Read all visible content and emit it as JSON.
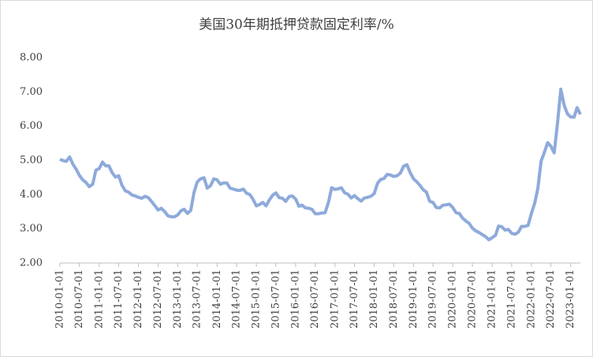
{
  "chart_data": {
    "type": "line",
    "title": "美国30年期抵押贷款固定利率/%",
    "color": "#8eaadb",
    "x": [
      "2010-01-01",
      "2010-02-01",
      "2010-03-01",
      "2010-04-01",
      "2010-05-01",
      "2010-06-01",
      "2010-07-01",
      "2010-08-01",
      "2010-09-01",
      "2010-10-01",
      "2010-11-01",
      "2010-12-01",
      "2011-01-01",
      "2011-02-01",
      "2011-03-01",
      "2011-04-01",
      "2011-05-01",
      "2011-06-01",
      "2011-07-01",
      "2011-08-01",
      "2011-09-01",
      "2011-10-01",
      "2011-11-01",
      "2011-12-01",
      "2012-01-01",
      "2012-02-01",
      "2012-03-01",
      "2012-04-01",
      "2012-05-01",
      "2012-06-01",
      "2012-07-01",
      "2012-08-01",
      "2012-09-01",
      "2012-10-01",
      "2012-11-01",
      "2012-12-01",
      "2013-01-01",
      "2013-02-01",
      "2013-03-01",
      "2013-04-01",
      "2013-05-01",
      "2013-06-01",
      "2013-07-01",
      "2013-08-01",
      "2013-09-01",
      "2013-10-01",
      "2013-11-01",
      "2013-12-01",
      "2014-01-01",
      "2014-02-01",
      "2014-03-01",
      "2014-04-01",
      "2014-05-01",
      "2014-06-01",
      "2014-07-01",
      "2014-08-01",
      "2014-09-01",
      "2014-10-01",
      "2014-11-01",
      "2014-12-01",
      "2015-01-01",
      "2015-02-01",
      "2015-03-01",
      "2015-04-01",
      "2015-05-01",
      "2015-06-01",
      "2015-07-01",
      "2015-08-01",
      "2015-09-01",
      "2015-10-01",
      "2015-11-01",
      "2015-12-01",
      "2016-01-01",
      "2016-02-01",
      "2016-03-01",
      "2016-04-01",
      "2016-05-01",
      "2016-06-01",
      "2016-07-01",
      "2016-08-01",
      "2016-09-01",
      "2016-10-01",
      "2016-11-01",
      "2016-12-01",
      "2017-01-01",
      "2017-02-01",
      "2017-03-01",
      "2017-04-01",
      "2017-05-01",
      "2017-06-01",
      "2017-07-01",
      "2017-08-01",
      "2017-09-01",
      "2017-10-01",
      "2017-11-01",
      "2017-12-01",
      "2018-01-01",
      "2018-02-01",
      "2018-03-01",
      "2018-04-01",
      "2018-05-01",
      "2018-06-01",
      "2018-07-01",
      "2018-08-01",
      "2018-09-01",
      "2018-10-01",
      "2018-11-01",
      "2018-12-01",
      "2019-01-01",
      "2019-02-01",
      "2019-03-01",
      "2019-04-01",
      "2019-05-01",
      "2019-06-01",
      "2019-07-01",
      "2019-08-01",
      "2019-09-01",
      "2019-10-01",
      "2019-11-01",
      "2019-12-01",
      "2020-01-01",
      "2020-02-01",
      "2020-03-01",
      "2020-04-01",
      "2020-05-01",
      "2020-06-01",
      "2020-07-01",
      "2020-08-01",
      "2020-09-01",
      "2020-10-01",
      "2020-11-01",
      "2020-12-01",
      "2021-01-01",
      "2021-02-01",
      "2021-03-01",
      "2021-04-01",
      "2021-05-01",
      "2021-06-01",
      "2021-07-01",
      "2021-08-01",
      "2021-09-01",
      "2021-10-01",
      "2021-11-01",
      "2021-12-01",
      "2022-01-01",
      "2022-02-01",
      "2022-03-01",
      "2022-04-01",
      "2022-05-01",
      "2022-06-01",
      "2022-07-01",
      "2022-08-01",
      "2022-09-01",
      "2022-10-01",
      "2022-11-01",
      "2022-12-01",
      "2023-01-01",
      "2023-02-01",
      "2023-03-01",
      "2023-04-01"
    ],
    "values": [
      5.03,
      4.99,
      4.97,
      5.1,
      4.89,
      4.74,
      4.56,
      4.43,
      4.35,
      4.23,
      4.3,
      4.71,
      4.76,
      4.95,
      4.84,
      4.84,
      4.64,
      4.51,
      4.55,
      4.27,
      4.11,
      4.07,
      3.99,
      3.96,
      3.92,
      3.89,
      3.95,
      3.91,
      3.8,
      3.68,
      3.55,
      3.6,
      3.5,
      3.38,
      3.35,
      3.35,
      3.41,
      3.53,
      3.57,
      3.45,
      3.54,
      4.07,
      4.37,
      4.46,
      4.49,
      4.19,
      4.26,
      4.46,
      4.43,
      4.3,
      4.34,
      4.34,
      4.19,
      4.16,
      4.13,
      4.12,
      4.16,
      4.04,
      4.0,
      3.86,
      3.67,
      3.71,
      3.77,
      3.67,
      3.84,
      3.98,
      4.05,
      3.91,
      3.89,
      3.8,
      3.94,
      3.96,
      3.87,
      3.66,
      3.69,
      3.61,
      3.6,
      3.57,
      3.44,
      3.44,
      3.46,
      3.47,
      3.77,
      4.2,
      4.15,
      4.17,
      4.2,
      4.05,
      4.01,
      3.9,
      3.97,
      3.88,
      3.81,
      3.9,
      3.92,
      3.95,
      4.03,
      4.33,
      4.44,
      4.47,
      4.59,
      4.57,
      4.53,
      4.55,
      4.63,
      4.83,
      4.87,
      4.64,
      4.46,
      4.37,
      4.27,
      4.14,
      4.07,
      3.8,
      3.77,
      3.62,
      3.61,
      3.69,
      3.7,
      3.72,
      3.62,
      3.47,
      3.45,
      3.31,
      3.23,
      3.16,
      3.02,
      2.94,
      2.89,
      2.83,
      2.77,
      2.68,
      2.74,
      2.81,
      3.08,
      3.06,
      2.96,
      2.98,
      2.87,
      2.84,
      2.9,
      3.07,
      3.07,
      3.1,
      3.45,
      3.76,
      4.17,
      4.98,
      5.23,
      5.52,
      5.41,
      5.22,
      6.11,
      7.08,
      6.61,
      6.36,
      6.27,
      6.26,
      6.54,
      6.34
    ],
    "xlim": [
      "2010-01-01",
      "2023-04-01"
    ],
    "xticks": [
      "2010-01-01",
      "2010-07-01",
      "2011-01-01",
      "2011-07-01",
      "2012-01-01",
      "2012-07-01",
      "2013-01-01",
      "2013-07-01",
      "2014-01-01",
      "2014-07-01",
      "2015-01-01",
      "2015-07-01",
      "2016-01-01",
      "2016-07-01",
      "2017-01-01",
      "2017-07-01",
      "2018-01-01",
      "2018-07-01",
      "2019-01-01",
      "2019-07-01",
      "2020-01-01",
      "2020-07-01",
      "2021-01-01",
      "2021-07-01",
      "2022-01-01",
      "2022-07-01",
      "2023-01-01"
    ],
    "ylim": [
      2,
      8
    ],
    "yticks": [
      {
        "value": 2,
        "label": "2.00"
      },
      {
        "value": 3,
        "label": "3.00"
      },
      {
        "value": 4,
        "label": "4.00"
      },
      {
        "value": 5,
        "label": "5.00"
      },
      {
        "value": 6,
        "label": "6.00"
      },
      {
        "value": 7,
        "label": "7.00"
      },
      {
        "value": 8,
        "label": "8.00"
      }
    ],
    "grid": false
  }
}
